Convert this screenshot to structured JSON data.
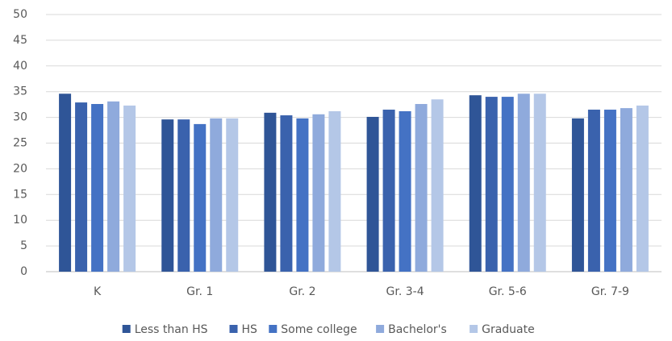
{
  "chart_data": {
    "type": "bar",
    "categories": [
      "K",
      "Gr. 1",
      "Gr. 2",
      "Gr. 3-4",
      "Gr. 5-6",
      "Gr. 7-9"
    ],
    "series": [
      {
        "name": "Less than HS",
        "color": "#2f5597",
        "values": [
          34.6,
          29.6,
          30.9,
          30.1,
          34.3,
          29.8
        ]
      },
      {
        "name": "HS",
        "color": "#3a62ad",
        "values": [
          32.9,
          29.6,
          30.4,
          31.5,
          34.0,
          31.5
        ]
      },
      {
        "name": "Some college",
        "color": "#4472c4",
        "values": [
          32.6,
          28.7,
          29.8,
          31.2,
          34.0,
          31.5
        ]
      },
      {
        "name": "Bachelor's",
        "color": "#8faadc",
        "values": [
          33.1,
          29.8,
          30.6,
          32.6,
          34.6,
          31.8
        ]
      },
      {
        "name": "Graduate",
        "color": "#b4c7e7",
        "values": [
          32.3,
          29.8,
          31.2,
          33.5,
          34.6,
          32.3
        ]
      }
    ],
    "ylim": [
      0,
      50
    ],
    "yticks": [
      0,
      5,
      10,
      15,
      20,
      25,
      30,
      35,
      40,
      45,
      50
    ],
    "grid": true,
    "legend": "bottom"
  }
}
